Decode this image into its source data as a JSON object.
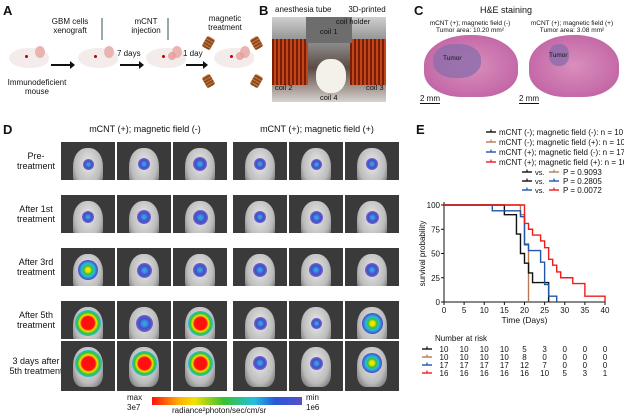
{
  "panels": {
    "A": {
      "label": "A",
      "steps": [
        {
          "text_lines": [
            "GBM cells",
            "xenograft"
          ]
        },
        {
          "text_lines": [
            "mCNT",
            "injection"
          ]
        },
        {
          "text_lines": [
            "magnetic",
            "treatment"
          ]
        }
      ],
      "intervals": [
        "7 days",
        "1 day"
      ],
      "mouse_label": [
        "Immunodeficient",
        "mouse"
      ]
    },
    "B": {
      "label": "B",
      "annotations": {
        "anesthesia_tube": "anesthesia tube",
        "holder": [
          "3D-printed",
          "coil holder"
        ],
        "coil1": "coil 1",
        "coil2": "coil 2",
        "coil3": "coil 3",
        "coil4": "coil 4"
      }
    },
    "C": {
      "label": "C",
      "title": "H&E staining",
      "samples": [
        {
          "condition": "mCNT (+); magnetic field (-)",
          "area": "Tumor area: 10.20 mm²",
          "tumor_label": "Tumor",
          "scale": "2 mm"
        },
        {
          "condition": "mCNT (+); magnetic field (+)",
          "area": "Tumor area: 3.08 mm²",
          "tumor_label": "Tumor",
          "scale": "2 mm"
        }
      ]
    },
    "D": {
      "label": "D",
      "group_titles": [
        "mCNT (+); magnetic field (-)",
        "mCNT (+); magnetic field (+)"
      ],
      "row_labels": [
        [
          "Pre-",
          "treatment"
        ],
        [
          "After 1st",
          "treatment"
        ],
        [
          "After 3rd",
          "treatment"
        ],
        [
          "After 5th",
          "treatment"
        ],
        [
          "3 days after",
          "5th treatment"
        ]
      ],
      "colorbar": {
        "max_label": "max",
        "max_value": "3e7",
        "min_label": "min",
        "min_value": "1e6",
        "unit": "radiance²photon/sec/cm/sr"
      }
    },
    "E": {
      "label": "E",
      "number_at_risk_title": "Number at risk",
      "comparisons": [
        {
          "a": "black",
          "b": "brown",
          "p": "P = 0.9093"
        },
        {
          "a": "black",
          "b": "blue",
          "p": "P = 0.2805"
        },
        {
          "a": "blue",
          "b": "red",
          "p": "P = 0.0072"
        }
      ],
      "vs_label": "vs."
    }
  },
  "chart_data": {
    "type": "line",
    "subtype": "kaplan-meier step",
    "title": "",
    "xlabel": "Time (Days)",
    "ylabel": "survival probability",
    "xlim": [
      0,
      40
    ],
    "ylim": [
      0,
      100
    ],
    "xticks": [
      0,
      5,
      10,
      15,
      20,
      25,
      30,
      35,
      40
    ],
    "yticks": [
      0,
      25,
      50,
      75,
      100
    ],
    "grid": false,
    "legend_position": "top",
    "series": [
      {
        "name": "mCNT (-); magnetic field (-): n = 10",
        "color": "#111111",
        "steps": [
          [
            0,
            100
          ],
          [
            15,
            90
          ],
          [
            18,
            70
          ],
          [
            19,
            50
          ],
          [
            20,
            40
          ],
          [
            21,
            30
          ],
          [
            22,
            20
          ],
          [
            26,
            0
          ]
        ],
        "at_risk": [
          10,
          10,
          10,
          10,
          5,
          3,
          0,
          0,
          0
        ]
      },
      {
        "name": "mCNT (-); magnetic field (+): n = 10",
        "color": "#b87a55",
        "steps": [
          [
            0,
            100
          ],
          [
            19,
            90
          ],
          [
            20,
            60
          ],
          [
            21,
            0
          ]
        ],
        "at_risk": [
          10,
          10,
          10,
          10,
          8,
          0,
          0,
          0,
          0
        ]
      },
      {
        "name": "mCNT (+); magnetic field (-): n = 17",
        "color": "#2156a8",
        "steps": [
          [
            0,
            100
          ],
          [
            12,
            94
          ],
          [
            19,
            88
          ],
          [
            20,
            59
          ],
          [
            21,
            53
          ],
          [
            24,
            41
          ],
          [
            25,
            18
          ],
          [
            26,
            6
          ],
          [
            28,
            0
          ]
        ],
        "at_risk": [
          17,
          17,
          17,
          17,
          12,
          7,
          0,
          0,
          0
        ]
      },
      {
        "name": "mCNT (+); magnetic field (+): n = 16",
        "color": "#ee1c1c",
        "steps": [
          [
            0,
            100
          ],
          [
            20,
            81
          ],
          [
            21,
            75
          ],
          [
            22,
            69
          ],
          [
            24,
            63
          ],
          [
            25,
            56
          ],
          [
            26,
            44
          ],
          [
            27,
            38
          ],
          [
            28,
            31
          ],
          [
            29,
            25
          ],
          [
            32,
            19
          ],
          [
            35,
            6
          ],
          [
            40,
            0
          ]
        ],
        "at_risk": [
          16,
          16,
          16,
          16,
          16,
          10,
          5,
          3,
          1
        ]
      }
    ]
  }
}
